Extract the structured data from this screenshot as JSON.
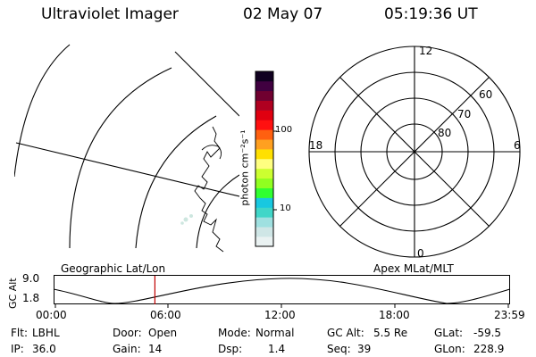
{
  "header": {
    "instrument": "Ultraviolet Imager",
    "date": "02 May 07",
    "time": "05:19:36 UT"
  },
  "colorbar": {
    "unit_label": "photon cm⁻²s⁻¹",
    "ticks": [
      "100",
      "10"
    ],
    "scale": "log",
    "colors": [
      "#eaf2f2",
      "#cfe6e6",
      "#9fe0e0",
      "#40d6c8",
      "#18c8e0",
      "#30ff30",
      "#90ff20",
      "#ccff30",
      "#ffff80",
      "#ffe000",
      "#ffa020",
      "#ff6010",
      "#ff1010",
      "#e00010",
      "#b00020",
      "#700030",
      "#400040",
      "#100020"
    ]
  },
  "polar_plot": {
    "lat_labels": [
      "80",
      "70",
      "60"
    ],
    "mlt_labels": {
      "top": "12",
      "left": "18",
      "right": "6",
      "bottom": "0"
    }
  },
  "orbit_plot": {
    "left_label": "Geographic Lat/Lon",
    "right_label": "Apex MLat/MLT",
    "y_axis_label": "GC Alt",
    "y_ticks": [
      "9.0",
      "1.8"
    ],
    "x_ticks": [
      "00:00",
      "06:00",
      "12:00",
      "18:00",
      "23:59"
    ],
    "current_time_fraction": 0.222
  },
  "info": {
    "flt_label": "Flt:",
    "flt_value": "LBHL",
    "ip_label": "IP:",
    "ip_value": "36.0",
    "door_label": "Door:",
    "door_value": "Open",
    "gain_label": "Gain:",
    "gain_value": "14",
    "mode_label": "Mode:",
    "mode_value": "Normal",
    "dsp_label": "Dsp:",
    "dsp_value": "1.4",
    "gcalt_label": "GC Alt:",
    "gcalt_value": "5.5 Re",
    "seq_label": "Seq:",
    "seq_value": "39",
    "glat_label": "GLat:",
    "glat_value": "-59.5",
    "glon_label": "GLon:",
    "glon_value": "228.9"
  }
}
